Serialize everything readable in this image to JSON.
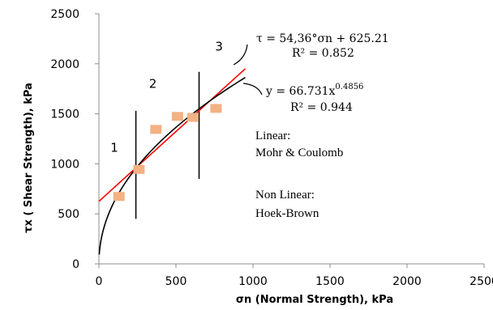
{
  "chart_data": {
    "type": "scatter",
    "xlabel_main": "σn",
    "xlabel_rest": " (Normal Strength), kPa",
    "ylabel_main": "τx",
    "ylabel_rest": " ( Shear Strength), kPa",
    "xlim": [
      0,
      2500
    ],
    "ylim": [
      0,
      2500
    ],
    "x_ticks": [
      "0",
      "500",
      "1000",
      "1500",
      "2000",
      "2500"
    ],
    "y_ticks": [
      "0",
      "500",
      "1000",
      "1500",
      "2000",
      "2500"
    ],
    "grid": false,
    "points": [
      {
        "x": 130,
        "y": 670
      },
      {
        "x": 260,
        "y": 940
      },
      {
        "x": 370,
        "y": 1340
      },
      {
        "x": 510,
        "y": 1470
      },
      {
        "x": 610,
        "y": 1460
      },
      {
        "x": 760,
        "y": 1550
      }
    ],
    "point_color": "#f4b183",
    "linear_fit": {
      "slope": 1.3951,
      "intercept": 625.21,
      "x_range": [
        0,
        950
      ],
      "color": "#ff0000"
    },
    "power_fit": {
      "a": 66.731,
      "b": 0.4856,
      "x_range": [
        2,
        950
      ],
      "color": "#000000"
    },
    "dividers": [
      {
        "x": 240,
        "y_range": [
          450,
          1530
        ]
      },
      {
        "x": 650,
        "y_range": [
          850,
          1920
        ]
      }
    ],
    "regions": [
      {
        "label": "1",
        "x": 100,
        "y": 1120
      },
      {
        "label": "2",
        "x": 350,
        "y": 1760
      },
      {
        "x": 780,
        "y": 2130,
        "label": "3"
      }
    ],
    "linear_eq": "τ = 54,36°σn + 625.21",
    "linear_r2": "R² = 0.852",
    "power_eq_base": "y = 66.731x",
    "power_eq_exp": "0.4856",
    "power_r2": "R² = 0.944",
    "notes": [
      "Linear:",
      "Mohr & Coulomb",
      "Non Linear:",
      "Hoek-Brown"
    ]
  }
}
